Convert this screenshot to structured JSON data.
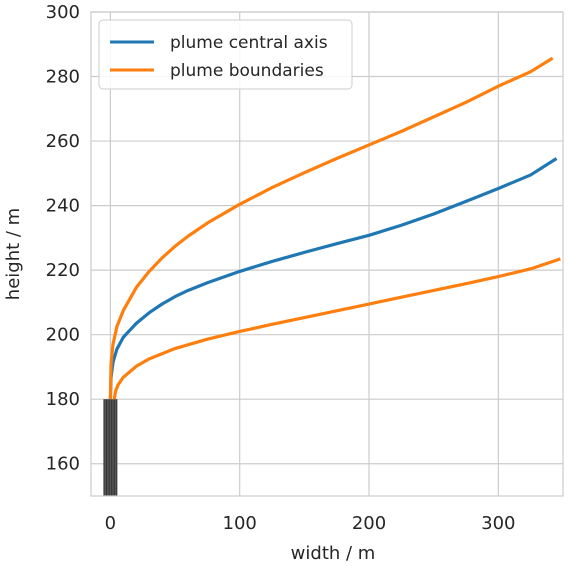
{
  "chart_data": {
    "type": "line",
    "xlabel": "width / m",
    "ylabel": "height / m",
    "xlim": [
      -15,
      350
    ],
    "ylim": [
      150,
      300
    ],
    "xticks": [
      0,
      100,
      200,
      300
    ],
    "yticks": [
      160,
      180,
      200,
      220,
      240,
      260,
      280,
      300
    ],
    "grid": true,
    "legend": {
      "position": "top-left",
      "entries": [
        {
          "label": "plume central axis",
          "color": "#1f77b4"
        },
        {
          "label": "plume boundaries",
          "color": "#ff7f0e"
        }
      ]
    },
    "stack": {
      "x_min": -5,
      "x_max": 5,
      "y_min": 150,
      "y_max": 180,
      "color": "#555555"
    },
    "series": [
      {
        "name": "plume central axis",
        "color": "#1f77b4",
        "x": [
          0,
          0.5,
          2,
          5,
          10,
          20,
          30,
          40,
          50,
          60,
          75,
          100,
          125,
          150,
          175,
          200,
          225,
          250,
          275,
          300,
          325,
          345
        ],
        "y": [
          180,
          186.6,
          191.4,
          195.5,
          199.2,
          203.5,
          206.8,
          209.5,
          211.8,
          213.7,
          216.1,
          219.6,
          222.7,
          225.5,
          228.2,
          230.8,
          233.9,
          237.4,
          241.3,
          245.3,
          249.5,
          254.6
        ]
      },
      {
        "name": "plume boundaries",
        "color": "#ff7f0e",
        "x": [
          0,
          0.5,
          2,
          5,
          10,
          20,
          30,
          40,
          50,
          60,
          75,
          100,
          125,
          150,
          175,
          200,
          225,
          250,
          275,
          300,
          325,
          342
        ],
        "y": [
          180,
          191,
          197,
          202.5,
          207.5,
          214.6,
          219.6,
          223.8,
          227.4,
          230.5,
          234.6,
          240.4,
          245.6,
          250.2,
          254.6,
          258.8,
          263,
          267.5,
          272,
          277,
          281.5,
          285.7
        ]
      },
      {
        "name": "plume boundaries",
        "color": "#ff7f0e",
        "x": [
          3,
          4,
          6,
          10,
          20,
          30,
          50,
          75,
          100,
          125,
          150,
          175,
          200,
          225,
          250,
          275,
          300,
          325,
          348
        ],
        "y": [
          180,
          182.5,
          184.5,
          186.8,
          190.2,
          192.5,
          195.7,
          198.6,
          201,
          203.2,
          205.3,
          207.4,
          209.5,
          211.6,
          213.7,
          215.8,
          218,
          220.4,
          223.5
        ]
      }
    ]
  }
}
